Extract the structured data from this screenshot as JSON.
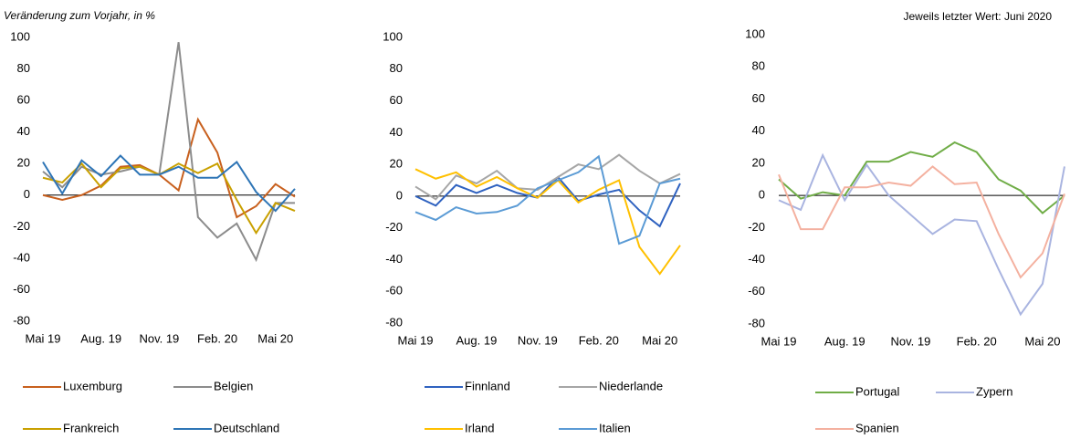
{
  "chart_data": [
    {
      "type": "line",
      "subtitle": "Veränderung zum Vorjahr, in %",
      "categories": [
        "Mai 19",
        null,
        null,
        "Aug. 19",
        null,
        null,
        "Nov. 19",
        null,
        null,
        "Feb. 20",
        null,
        null,
        "Mai 20",
        null
      ],
      "ylim": [
        -80,
        100
      ],
      "yticks": [
        -80,
        -60,
        -40,
        -20,
        0,
        20,
        40,
        60,
        80,
        100
      ],
      "grid": false,
      "series": [
        {
          "name": "Luxemburg",
          "color": "#c8601e",
          "values": [
            0,
            -3,
            0,
            6,
            18,
            19,
            13,
            3,
            48,
            27,
            -14,
            -7,
            7,
            -1
          ]
        },
        {
          "name": "Belgien",
          "color": "#8c8c8c",
          "values": [
            15,
            5,
            18,
            13,
            15,
            18,
            13,
            97,
            -14,
            -27,
            -18,
            -41,
            -5,
            -5
          ]
        },
        {
          "name": "Frankreich",
          "color": "#c9a000",
          "values": [
            11,
            8,
            20,
            5,
            17,
            18,
            13,
            20,
            14,
            20,
            -3,
            -24,
            -5,
            -10
          ]
        },
        {
          "name": "Deutschland",
          "color": "#2e75b6",
          "values": [
            21,
            1,
            22,
            12,
            25,
            13,
            13,
            18,
            11,
            11,
            21,
            2,
            -10,
            4
          ]
        }
      ]
    },
    {
      "type": "line",
      "categories": [
        "Mai 19",
        null,
        null,
        "Aug. 19",
        null,
        null,
        "Nov. 19",
        null,
        null,
        "Feb. 20",
        null,
        null,
        "Mai 20",
        null
      ],
      "ylim": [
        -80,
        100
      ],
      "yticks": [
        -80,
        -60,
        -40,
        -20,
        0,
        20,
        40,
        60,
        80,
        100
      ],
      "grid": false,
      "series": [
        {
          "name": "Finnland",
          "color": "#2f62c0",
          "values": [
            0,
            -6,
            7,
            2,
            7,
            2,
            -1,
            12,
            -3,
            1,
            4,
            -9,
            -19,
            8
          ]
        },
        {
          "name": "Niederlande",
          "color": "#a6a6a6",
          "values": [
            6,
            -2,
            13,
            8,
            16,
            5,
            4,
            12,
            20,
            17,
            26,
            16,
            8,
            14
          ]
        },
        {
          "name": "Irland",
          "color": "#ffc000",
          "values": [
            17,
            11,
            15,
            6,
            12,
            5,
            -1,
            10,
            -4,
            4,
            10,
            -32,
            -49,
            -31
          ]
        },
        {
          "name": "Italien",
          "color": "#5b9bd5",
          "values": [
            -10,
            -15,
            -7,
            -11,
            -10,
            -6,
            5,
            10,
            15,
            25,
            -30,
            -25,
            8,
            11
          ]
        }
      ]
    },
    {
      "type": "line",
      "note": "Jeweils letzter Wert: Juni 2020",
      "categories": [
        "Mai 19",
        null,
        null,
        "Aug. 19",
        null,
        null,
        "Nov. 19",
        null,
        null,
        "Feb. 20",
        null,
        null,
        "Mai 20",
        null
      ],
      "ylim": [
        -80,
        100
      ],
      "yticks": [
        -80,
        -60,
        -40,
        -20,
        0,
        20,
        40,
        60,
        80,
        100
      ],
      "grid": false,
      "series": [
        {
          "name": "Portugal",
          "color": "#70ad47",
          "values": [
            10,
            -2,
            2,
            0,
            21,
            21,
            27,
            24,
            33,
            27,
            10,
            3,
            -11,
            0
          ]
        },
        {
          "name": "Zypern",
          "color": "#a9b4e0",
          "values": [
            -3,
            -9,
            25,
            -3,
            19,
            0,
            -12,
            -24,
            -15,
            -16,
            -46,
            -74,
            -55,
            18
          ]
        },
        {
          "name": "Spanien",
          "color": "#f4b1a0",
          "values": [
            13,
            -21,
            -21,
            5,
            5,
            8,
            6,
            18,
            7,
            8,
            -24,
            -51,
            -36,
            1
          ]
        }
      ]
    }
  ]
}
